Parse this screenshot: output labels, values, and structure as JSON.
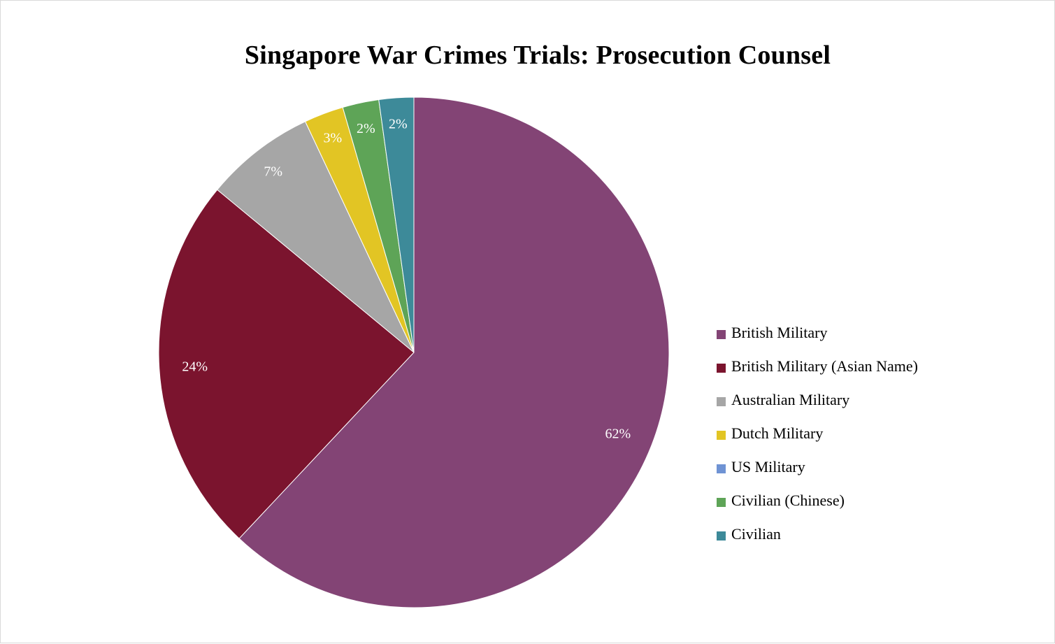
{
  "chart_data": {
    "type": "pie",
    "title": "Singapore War Crimes Trials: Prosecution Counsel",
    "series": [
      {
        "name": "British Military",
        "value": 62,
        "label": "62%",
        "color": "#834475"
      },
      {
        "name": "British Military (Asian Name)",
        "value": 24,
        "label": "24%",
        "color": "#7b142e"
      },
      {
        "name": "Australian Military",
        "value": 7,
        "label": "7%",
        "color": "#a6a6a6"
      },
      {
        "name": "Dutch Military",
        "value": 2.5,
        "label": "3%",
        "color": "#e2c524"
      },
      {
        "name": "US Military",
        "value": 0,
        "label": "",
        "color": "#6f93d4"
      },
      {
        "name": "Civilian (Chinese)",
        "value": 2.3,
        "label": "2%",
        "color": "#5ea457"
      },
      {
        "name": "Civilian",
        "value": 2.2,
        "label": "2%",
        "color": "#3d8a99"
      }
    ],
    "legend_position": "right"
  }
}
